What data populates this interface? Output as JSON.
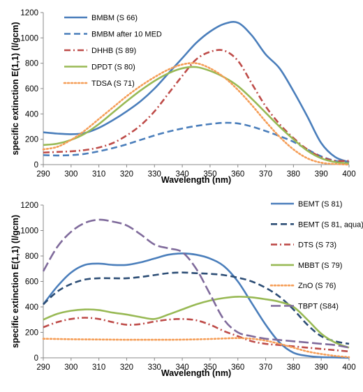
{
  "chart_data": [
    {
      "type": "line",
      "xlabel": "Wavelength (nm)",
      "ylabel": "specific extinction E(1,1) (l/gcm)",
      "xlim": [
        290,
        400
      ],
      "ylim": [
        0,
        1200
      ],
      "xticks": [
        290,
        300,
        310,
        320,
        330,
        340,
        350,
        360,
        370,
        380,
        390,
        400
      ],
      "yticks": [
        0,
        200,
        400,
        600,
        800,
        1000,
        1200
      ],
      "grid": false,
      "legend_position": "top-left",
      "x": [
        290,
        295,
        300,
        305,
        310,
        315,
        320,
        325,
        330,
        335,
        340,
        345,
        350,
        355,
        360,
        365,
        370,
        375,
        380,
        385,
        390,
        395,
        400
      ],
      "series": [
        {
          "name": "BMBM (S 66)",
          "color": "#4a7ebb",
          "dash": "solid",
          "values": [
            255,
            245,
            240,
            250,
            290,
            350,
            420,
            500,
            600,
            720,
            840,
            960,
            1050,
            1110,
            1120,
            1020,
            870,
            760,
            580,
            380,
            170,
            60,
            20
          ]
        },
        {
          "name": "BMBM after 10 MED",
          "color": "#4a7ebb",
          "dash": "dash",
          "values": [
            75,
            72,
            75,
            85,
            105,
            130,
            160,
            195,
            230,
            260,
            285,
            305,
            320,
            330,
            325,
            300,
            265,
            225,
            180,
            120,
            65,
            30,
            15
          ]
        },
        {
          "name": "DHHB (S 89)",
          "color": "#be4b48",
          "dash": "dashdot",
          "values": [
            95,
            100,
            105,
            115,
            135,
            170,
            230,
            310,
            420,
            560,
            700,
            830,
            890,
            900,
            820,
            640,
            460,
            320,
            210,
            120,
            60,
            30,
            30
          ]
        },
        {
          "name": "DPDT (S 80)",
          "color": "#98b954",
          "dash": "solid",
          "values": [
            155,
            165,
            195,
            245,
            320,
            410,
            500,
            585,
            660,
            720,
            760,
            770,
            740,
            690,
            620,
            520,
            410,
            300,
            200,
            110,
            50,
            20,
            10
          ]
        },
        {
          "name": "TDSA (S 71)",
          "color": "#f59d56",
          "dash": "dot",
          "values": [
            120,
            140,
            195,
            270,
            360,
            450,
            540,
            620,
            690,
            750,
            790,
            800,
            760,
            690,
            590,
            470,
            340,
            220,
            120,
            50,
            15,
            5,
            0
          ]
        }
      ]
    },
    {
      "type": "line",
      "xlabel": "Wavelength (nm)",
      "ylabel": "specific extinction E(1,1) (l/gcm)",
      "xlim": [
        290,
        400
      ],
      "ylim": [
        0,
        1200
      ],
      "xticks": [
        290,
        300,
        310,
        320,
        330,
        340,
        350,
        360,
        370,
        380,
        390,
        400
      ],
      "yticks": [
        0,
        200,
        400,
        600,
        800,
        1000,
        1200
      ],
      "grid": false,
      "legend_position": "right",
      "x": [
        290,
        295,
        300,
        305,
        310,
        315,
        320,
        325,
        330,
        335,
        340,
        345,
        350,
        355,
        360,
        365,
        370,
        375,
        380,
        385,
        390,
        395,
        400
      ],
      "series": [
        {
          "name": "BEMT (S 81)",
          "color": "#4a7ebb",
          "dash": "solid",
          "values": [
            420,
            560,
            670,
            730,
            740,
            730,
            730,
            750,
            780,
            810,
            820,
            810,
            780,
            720,
            600,
            430,
            260,
            120,
            40,
            15,
            5,
            3,
            0
          ]
        },
        {
          "name": "BEMT (S 81, aqua)",
          "color": "#2c4d75",
          "dash": "dash",
          "values": [
            420,
            520,
            580,
            615,
            625,
            625,
            625,
            635,
            650,
            665,
            670,
            665,
            660,
            650,
            630,
            600,
            550,
            480,
            380,
            260,
            170,
            130,
            110
          ]
        },
        {
          "name": "DTS (S 73)",
          "color": "#be4b48",
          "dash": "dashdot",
          "values": [
            240,
            280,
            305,
            315,
            305,
            280,
            260,
            265,
            285,
            300,
            305,
            295,
            260,
            210,
            170,
            130,
            110,
            100,
            90,
            80,
            70,
            60,
            50
          ]
        },
        {
          "name": "MBBT (S 79)",
          "color": "#98b954",
          "dash": "solid",
          "values": [
            300,
            345,
            370,
            380,
            375,
            355,
            340,
            320,
            305,
            340,
            380,
            420,
            450,
            470,
            480,
            475,
            460,
            440,
            400,
            300,
            190,
            120,
            80
          ]
        },
        {
          "name": "ZnO (S 76)",
          "color": "#f59d56",
          "dash": "dot",
          "values": [
            150,
            148,
            146,
            145,
            144,
            143,
            142,
            142,
            142,
            142,
            143,
            145,
            148,
            152,
            155,
            150,
            135,
            110,
            80,
            50,
            30,
            15,
            5
          ]
        },
        {
          "name": "TBPT (S84)",
          "color": "#7f6a9b",
          "dash": "longdash",
          "values": [
            680,
            870,
            990,
            1060,
            1085,
            1070,
            1040,
            970,
            890,
            860,
            830,
            700,
            500,
            300,
            200,
            170,
            150,
            140,
            130,
            120,
            110,
            100,
            80
          ]
        }
      ]
    }
  ]
}
